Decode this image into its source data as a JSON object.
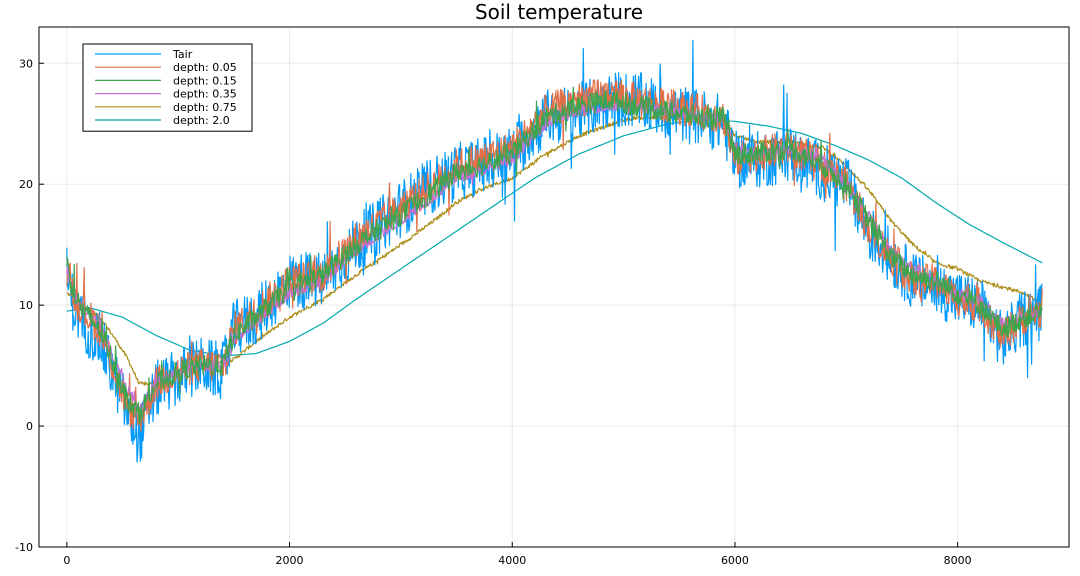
{
  "chart_data": {
    "type": "line",
    "title": "Soil temperature",
    "xlabel": "",
    "ylabel": "",
    "xlim": [
      -250,
      9000
    ],
    "ylim": [
      -10,
      33
    ],
    "x_ticks": [
      0,
      2000,
      4000,
      6000,
      8000
    ],
    "y_ticks": [
      -10,
      0,
      10,
      20,
      30
    ],
    "grid": true,
    "legend_position": "top-left",
    "series": [
      {
        "name": "Tair",
        "color": "#009AFA",
        "noise": 4.0,
        "x": [
          0,
          60,
          150,
          300,
          450,
          550,
          650,
          800,
          1000,
          1200,
          1400,
          1500,
          1700,
          2000,
          2300,
          2600,
          3000,
          3300,
          3500,
          3700,
          4000,
          4300,
          4600,
          4900,
          5100,
          5400,
          5700,
          5900,
          6000,
          6200,
          6500,
          6800,
          7000,
          7200,
          7400,
          7600,
          7800,
          8000,
          8200,
          8400,
          8600,
          8760
        ],
        "values": [
          12.5,
          10.0,
          8.5,
          7.0,
          3.5,
          1.0,
          -1.0,
          3.0,
          4.0,
          5.0,
          4.5,
          8.0,
          9.0,
          12.0,
          12.0,
          15.0,
          18.0,
          20.0,
          21.0,
          21.5,
          22.5,
          25.5,
          26.0,
          27.0,
          27.0,
          26.0,
          25.5,
          25.0,
          22.0,
          22.0,
          22.5,
          21.0,
          20.0,
          16.0,
          14.0,
          12.0,
          11.5,
          10.5,
          10.0,
          7.0,
          9.0,
          9.5
        ]
      },
      {
        "name": "depth: 0.05",
        "color": "#E36F47",
        "noise": 2.4,
        "x": [
          0,
          60,
          150,
          300,
          450,
          550,
          650,
          800,
          1000,
          1200,
          1400,
          1500,
          1700,
          2000,
          2300,
          2600,
          3000,
          3300,
          3500,
          3700,
          4000,
          4300,
          4600,
          4900,
          5100,
          5400,
          5700,
          5900,
          6000,
          6200,
          6500,
          6800,
          7000,
          7200,
          7400,
          7600,
          7800,
          8000,
          8200,
          8400,
          8600,
          8760
        ],
        "values": [
          14.0,
          11.0,
          9.5,
          8.0,
          4.0,
          1.5,
          0.5,
          3.5,
          4.5,
          5.0,
          5.0,
          8.0,
          9.5,
          12.0,
          12.5,
          15.5,
          18.0,
          20.0,
          21.5,
          22.0,
          23.0,
          26.0,
          27.0,
          27.5,
          27.0,
          26.5,
          26.0,
          25.5,
          22.0,
          22.5,
          23.0,
          21.5,
          20.0,
          16.5,
          14.0,
          12.0,
          12.0,
          10.5,
          10.0,
          7.5,
          9.0,
          9.5
        ]
      },
      {
        "name": "depth: 0.15",
        "color": "#3EA44E",
        "noise": 1.5,
        "x": [
          0,
          60,
          150,
          300,
          450,
          550,
          650,
          800,
          1000,
          1200,
          1400,
          1500,
          1700,
          2000,
          2300,
          2600,
          3000,
          3300,
          3500,
          3700,
          4000,
          4300,
          4600,
          4900,
          5100,
          5400,
          5700,
          5900,
          6000,
          6200,
          6500,
          6800,
          7000,
          7200,
          7400,
          7600,
          7800,
          8000,
          8200,
          8400,
          8600,
          8760
        ],
        "values": [
          13.5,
          11.0,
          9.5,
          8.0,
          4.5,
          2.0,
          1.0,
          3.5,
          4.5,
          5.0,
          5.0,
          7.5,
          9.0,
          11.5,
          12.5,
          15.0,
          17.5,
          19.5,
          21.0,
          21.5,
          22.5,
          25.5,
          26.5,
          27.0,
          26.5,
          26.0,
          25.5,
          25.5,
          22.5,
          22.5,
          23.0,
          21.5,
          20.0,
          17.0,
          14.0,
          12.5,
          12.0,
          11.0,
          10.0,
          8.0,
          9.0,
          9.5
        ]
      },
      {
        "name": "depth: 0.35",
        "color": "#C371D2",
        "noise": 0.7,
        "x": [
          0,
          60,
          150,
          300,
          450,
          550,
          650,
          800,
          1000,
          1200,
          1400,
          1500,
          1700,
          2000,
          2300,
          2600,
          3000,
          3300,
          3500,
          3700,
          4000,
          4300,
          4600,
          4900,
          5100,
          5400,
          5700,
          5900,
          6000,
          6200,
          6500,
          6800,
          7000,
          7200,
          7400,
          7600,
          7800,
          8000,
          8200,
          8400,
          8600,
          8760
        ],
        "values": [
          13.0,
          11.0,
          9.5,
          8.5,
          5.0,
          3.0,
          1.5,
          3.5,
          4.5,
          5.0,
          5.0,
          7.0,
          8.5,
          11.0,
          12.0,
          14.5,
          17.0,
          19.0,
          20.5,
          21.0,
          22.0,
          25.0,
          26.0,
          26.5,
          26.5,
          26.0,
          25.5,
          25.5,
          23.0,
          22.5,
          23.0,
          22.0,
          20.0,
          17.5,
          14.5,
          13.0,
          12.0,
          11.0,
          10.5,
          8.5,
          9.0,
          9.5
        ]
      },
      {
        "name": "depth: 0.75",
        "color": "#AC8D18",
        "noise": 0.25,
        "x": [
          0,
          150,
          300,
          450,
          550,
          650,
          800,
          1000,
          1200,
          1500,
          1700,
          2000,
          2300,
          2600,
          3000,
          3300,
          3500,
          3700,
          4000,
          4300,
          4600,
          4900,
          5100,
          5400,
          5700,
          5900,
          6000,
          6200,
          6500,
          6800,
          7000,
          7200,
          7400,
          7600,
          7800,
          8000,
          8200,
          8400,
          8600,
          8760
        ],
        "values": [
          11.0,
          10.0,
          9.0,
          7.0,
          5.5,
          3.5,
          3.5,
          4.5,
          5.0,
          5.5,
          7.0,
          9.0,
          10.5,
          12.5,
          15.0,
          17.0,
          18.5,
          19.5,
          20.5,
          22.5,
          24.0,
          25.0,
          25.5,
          25.5,
          25.5,
          25.5,
          24.0,
          23.5,
          23.5,
          23.0,
          21.5,
          19.5,
          17.0,
          15.0,
          13.5,
          13.0,
          12.0,
          11.5,
          11.0,
          10.0
        ]
      },
      {
        "name": "depth: 2.0",
        "color": "#00A9AD",
        "noise": 0,
        "x": [
          0,
          200,
          500,
          800,
          1100,
          1400,
          1700,
          2000,
          2300,
          2600,
          3000,
          3400,
          3800,
          4200,
          4600,
          5000,
          5400,
          5700,
          6000,
          6300,
          6600,
          6900,
          7200,
          7500,
          7800,
          8100,
          8400,
          8760
        ],
        "values": [
          9.5,
          9.8,
          9.0,
          7.5,
          6.3,
          5.8,
          6.0,
          7.0,
          8.5,
          10.5,
          13.0,
          15.5,
          18.0,
          20.5,
          22.5,
          24.0,
          25.0,
          25.3,
          25.2,
          24.8,
          24.2,
          23.2,
          22.0,
          20.5,
          18.5,
          16.7,
          15.2,
          13.5
        ]
      }
    ]
  }
}
